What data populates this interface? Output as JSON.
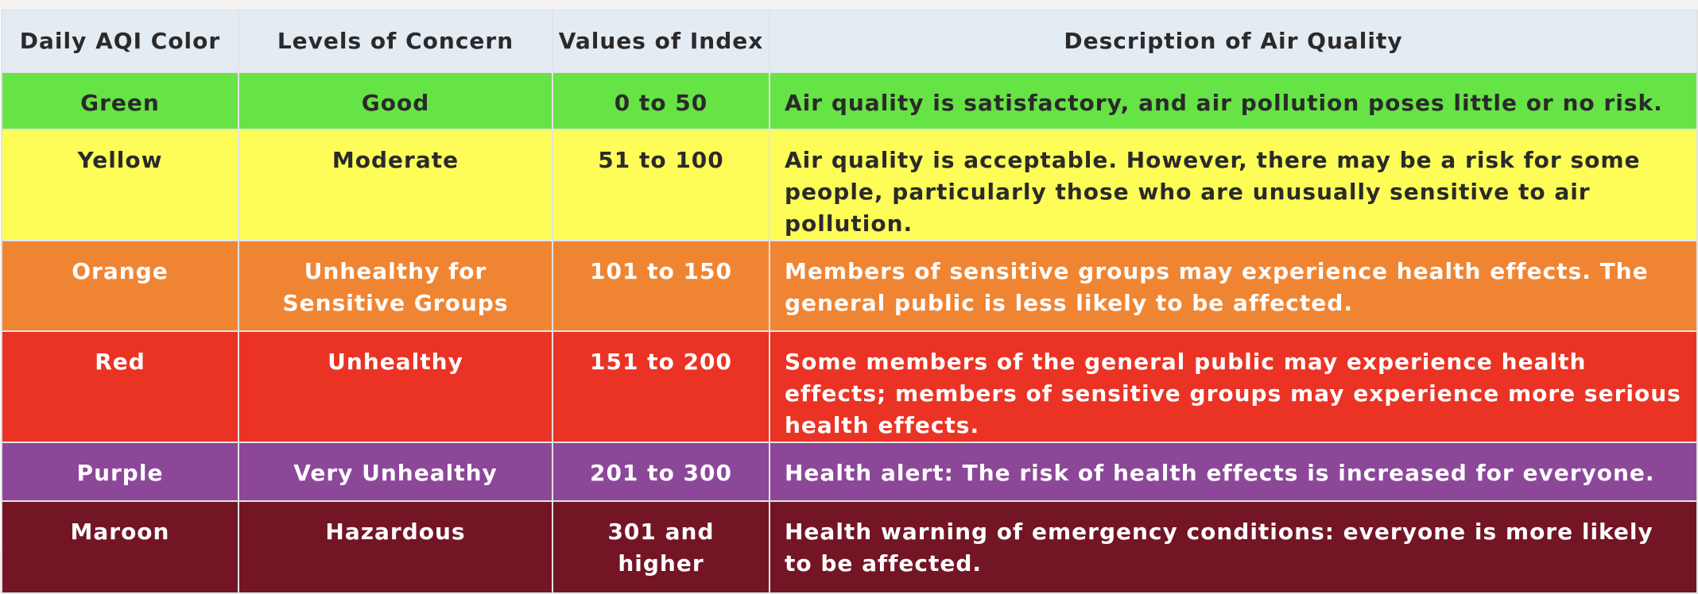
{
  "table": {
    "headers": [
      "Daily AQI Color",
      "Levels of Concern",
      "Values of Index",
      "Description of Air Quality"
    ],
    "rows": [
      {
        "id": "green",
        "color_name": "Green",
        "level": "Good",
        "values": "0 to 50",
        "description": "Air quality is satisfactory, and air pollution poses little or no risk.",
        "bg": "#66e345",
        "fg": "#2a2a2a"
      },
      {
        "id": "yellow",
        "color_name": "Yellow",
        "level": "Moderate",
        "values": "51 to 100",
        "description": "Air quality is acceptable. However, there may be a risk for some people, particularly those who are unusually sensitive to air pollution.",
        "bg": "#fefd57",
        "fg": "#2a2a2a"
      },
      {
        "id": "orange",
        "color_name": "Orange",
        "level": "Unhealthy for Sensitive Groups",
        "values": "101 to 150",
        "description": "Members of sensitive groups may experience health effects. The general public is less likely to be affected.",
        "bg": "#ef8533",
        "fg": "#ffffff"
      },
      {
        "id": "red",
        "color_name": "Red",
        "level": "Unhealthy",
        "values": "151 to 200",
        "description": "Some members of the general public may experience health effects; members of sensitive groups may experience more serious health effects.",
        "bg": "#ea3324",
        "fg": "#ffffff"
      },
      {
        "id": "purple",
        "color_name": "Purple",
        "level": "Very Unhealthy",
        "values": "201 to 300",
        "description": "Health alert: The risk of health effects is increased for everyone.",
        "bg": "#8c4799",
        "fg": "#ffffff"
      },
      {
        "id": "maroon",
        "color_name": "Maroon",
        "level": "Hazardous",
        "values": "301 and higher",
        "description": "Health warning of emergency conditions: everyone is more likely to be affected.",
        "bg": "#731524",
        "fg": "#ffffff"
      }
    ]
  }
}
